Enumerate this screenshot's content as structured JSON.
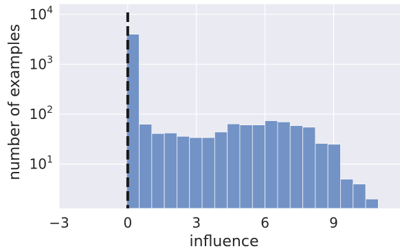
{
  "chart_data": {
    "type": "bar",
    "xlabel": "influence",
    "ylabel": "number of examples",
    "xlim": [
      -3,
      11.9
    ],
    "ylim": [
      1.3,
      16000
    ],
    "yscale": "log",
    "grid": true,
    "x_ticks": [
      {
        "value": -3,
        "label": "−3"
      },
      {
        "value": 0,
        "label": "0"
      },
      {
        "value": 3,
        "label": "3"
      },
      {
        "value": 6,
        "label": "6"
      },
      {
        "value": 9,
        "label": "9"
      }
    ],
    "y_ticks": [
      {
        "value": 10,
        "base": "10",
        "exp": "1"
      },
      {
        "value": 100,
        "base": "10",
        "exp": "2"
      },
      {
        "value": 1000,
        "base": "10",
        "exp": "3"
      },
      {
        "value": 10000,
        "base": "10",
        "exp": "4"
      }
    ],
    "bin_edges": [
      -0.05,
      0.5,
      1.05,
      1.6,
      2.15,
      2.7,
      3.25,
      3.8,
      4.35,
      4.9,
      5.45,
      6.0,
      6.55,
      7.1,
      7.65,
      8.2,
      8.75,
      9.3,
      9.85,
      10.4,
      10.95,
      11.5
    ],
    "values": [
      4000,
      63,
      41,
      42,
      36,
      34,
      34,
      44,
      64,
      61,
      61,
      74,
      70,
      59,
      55,
      26,
      25,
      5,
      4,
      2,
      1
    ],
    "reference_line": {
      "x": 0,
      "style": "dashed",
      "color": "#1a1a1a"
    },
    "colors": {
      "bar": "#7393c6",
      "background": "#eaeaf2",
      "grid": "#ffffff"
    }
  }
}
